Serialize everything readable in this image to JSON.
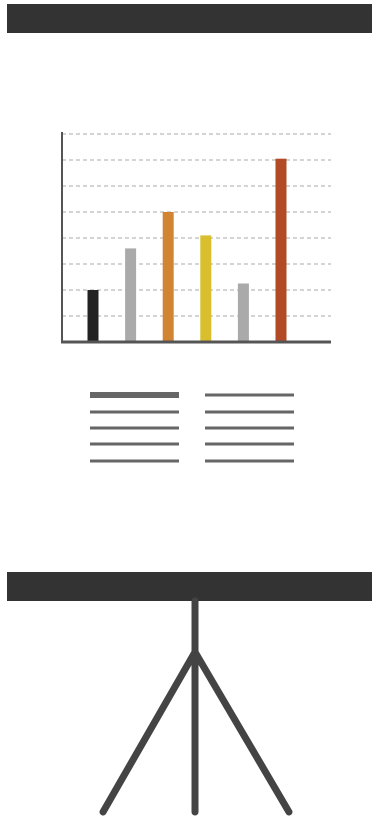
{
  "illustration": {
    "type": "presentation-board-icon",
    "icon_name": "presentation-easel-with-bar-chart",
    "colors": {
      "board_frame": "#333333",
      "stand": "#444444",
      "axis": "#555555",
      "grid": "#aaaaaa",
      "text_lines": "#666666"
    }
  },
  "chart_data": {
    "type": "bar",
    "categories": [
      "",
      "",
      "",
      "",
      "",
      ""
    ],
    "values": [
      2,
      3.6,
      5,
      4.1,
      2.25,
      7.05
    ],
    "colors": [
      "#222222",
      "#aaaaaa",
      "#d18432",
      "#d9bf2e",
      "#aaaaaa",
      "#b24a26"
    ],
    "ylim": [
      0,
      8
    ],
    "grid": true,
    "title": "",
    "xlabel": "",
    "ylabel": ""
  }
}
